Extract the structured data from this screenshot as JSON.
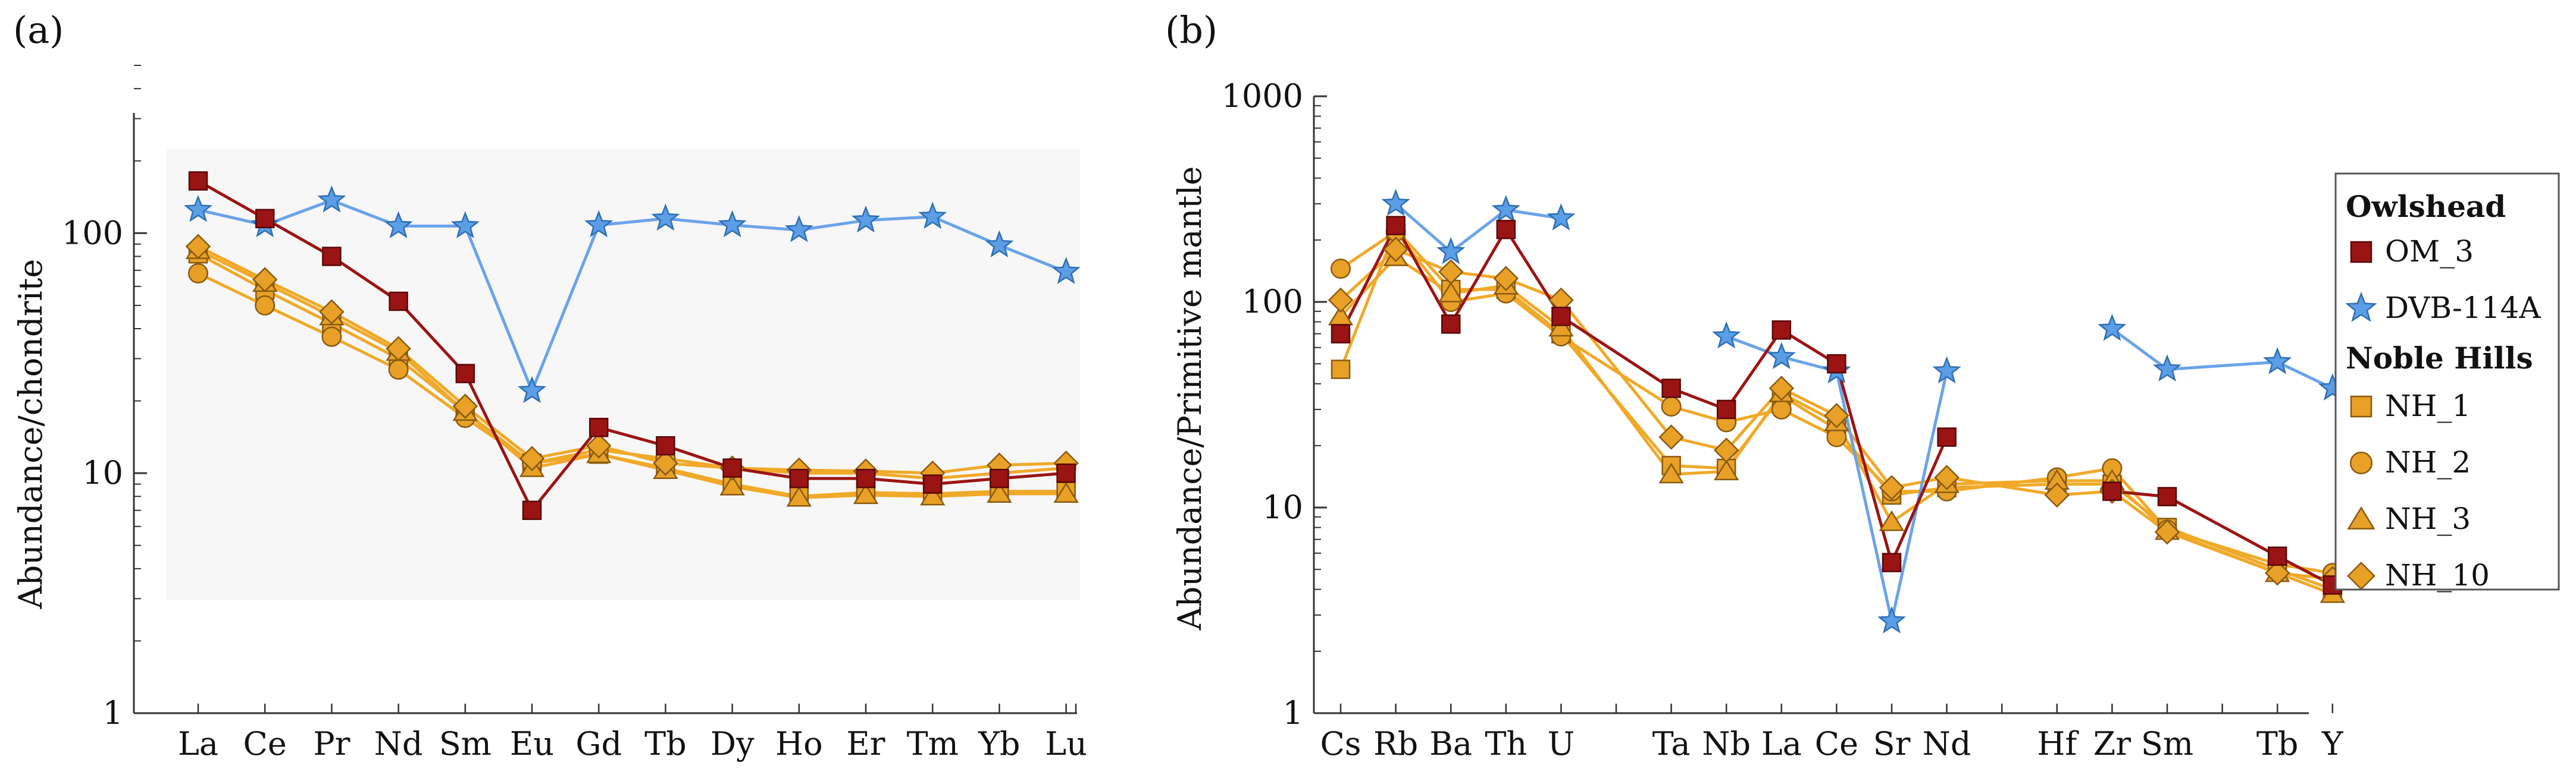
{
  "chart_data": [
    {
      "type": "line",
      "panel_label": "(a)",
      "y_scale": "log",
      "ylim": [
        1,
        500
      ],
      "yticks": [
        1,
        10,
        100
      ],
      "ylabel": "Abundance/chondrite",
      "xlabel": "",
      "categories": [
        "La",
        "Ce",
        "Pr",
        "Nd",
        "Sm",
        "Eu",
        "Gd",
        "Tb",
        "Dy",
        "Ho",
        "Er",
        "Tm",
        "Yb",
        "Lu"
      ],
      "series": [
        {
          "name": "OM_3",
          "values": [
            165,
            115,
            80,
            52,
            26,
            7,
            15.5,
            13,
            10.5,
            9.5,
            9.5,
            9,
            9.5,
            10
          ]
        },
        {
          "name": "DVB-114A",
          "values": [
            125,
            108,
            137,
            107,
            107,
            22,
            108,
            115,
            108,
            103,
            113,
            117,
            89,
            69
          ]
        },
        {
          "name": "NH_1",
          "values": [
            82,
            58,
            42,
            30,
            18,
            11,
            12,
            10.5,
            9,
            8,
            8.3,
            8.2,
            8.4,
            8.4
          ]
        },
        {
          "name": "NH_2",
          "values": [
            68,
            50,
            37,
            27,
            17,
            11,
            12.5,
            11.5,
            10.5,
            10,
            10,
            9.5,
            10,
            10.5
          ]
        },
        {
          "name": "NH_3",
          "values": [
            85,
            62,
            45,
            32,
            18,
            10.5,
            12,
            10.3,
            8.8,
            7.9,
            8.1,
            8,
            8.2,
            8.2
          ]
        },
        {
          "name": "NH_10",
          "values": [
            88,
            64,
            47,
            33,
            19,
            11.5,
            13,
            11,
            10.5,
            10.3,
            10.2,
            10,
            10.8,
            11
          ]
        }
      ]
    },
    {
      "type": "line",
      "panel_label": "(b)",
      "y_scale": "log",
      "ylim": [
        1,
        1000
      ],
      "yticks": [
        1,
        10,
        100,
        1000
      ],
      "ylabel": "Abundance/Primitive mantle",
      "xlabel": "",
      "categories": [
        "Cs",
        "Rb",
        "Ba",
        "Th",
        "U",
        "Ta",
        "Nb",
        "La",
        "Ce",
        "Sr",
        "Nd",
        "Hf",
        "Zr",
        "Sm",
        "Tb",
        "Y"
      ],
      "category_slots": [
        0,
        1,
        2,
        3,
        4,
        6,
        7,
        8,
        9,
        10,
        11,
        13,
        14,
        15,
        17,
        18
      ],
      "slot_count": 19,
      "series": [
        {
          "name": "OM_3",
          "values": [
            70,
            235,
            78,
            225,
            85,
            38,
            30,
            73,
            50,
            5.4,
            22,
            null,
            12,
            11.3,
            5.8,
            4.2
          ]
        },
        {
          "name": "DVB-114A",
          "values": [
            null,
            300,
            175,
            280,
            255,
            null,
            68,
            54,
            46,
            2.8,
            46,
            null,
            74,
            47,
            51,
            38
          ]
        },
        {
          "name": "NH_1",
          "values": [
            47,
            225,
            115,
            115,
            70,
            16,
            15.5,
            35,
            24,
            11.5,
            12.5,
            13,
            13,
            8,
            5,
            4
          ]
        },
        {
          "name": "NH_2",
          "values": [
            145,
            220,
            100,
            110,
            68,
            31,
            26,
            30,
            22,
            12,
            12,
            14,
            15.5,
            7.8,
            5.3,
            4.8
          ]
        },
        {
          "name": "NH_3",
          "values": [
            85,
            165,
            110,
            120,
            75,
            14.5,
            15,
            36,
            26,
            8.5,
            13,
            13.5,
            13.5,
            7.7,
            4.8,
            3.8
          ]
        },
        {
          "name": "NH_10",
          "values": [
            102,
            180,
            140,
            130,
            102,
            22,
            19,
            38,
            28,
            12.5,
            14,
            11.5,
            12,
            7.6,
            4.8,
            4.5
          ]
        }
      ]
    }
  ],
  "legend": {
    "groups": [
      {
        "heading": "Owlshead",
        "entries": [
          {
            "name": "OM_3",
            "marker": "square",
            "fill": "#9b1414",
            "stroke": "#5a0808"
          },
          {
            "name": "DVB-114A",
            "marker": "star",
            "fill": "#5b9ee6",
            "stroke": "#2f6fb5"
          }
        ]
      },
      {
        "heading": "Noble Hills",
        "entries": [
          {
            "name": "NH_1",
            "marker": "square",
            "fill": "#e8a126",
            "stroke": "#8a5a10"
          },
          {
            "name": "NH_2",
            "marker": "circle",
            "fill": "#e8a126",
            "stroke": "#8a5a10"
          },
          {
            "name": "NH_3",
            "marker": "triangle",
            "fill": "#e8a126",
            "stroke": "#8a5a10"
          },
          {
            "name": "NH_10",
            "marker": "diamond",
            "fill": "#e8a126",
            "stroke": "#8a5a10"
          }
        ]
      }
    ]
  },
  "colors": {
    "owlshead_om": "#9b1414",
    "owlshead_dvb_line": "#6aa3ea",
    "noble_hills_line": "#f0a928",
    "noble_hills_fill": "#e8a126",
    "marker_edge": "#7a4f0d"
  }
}
